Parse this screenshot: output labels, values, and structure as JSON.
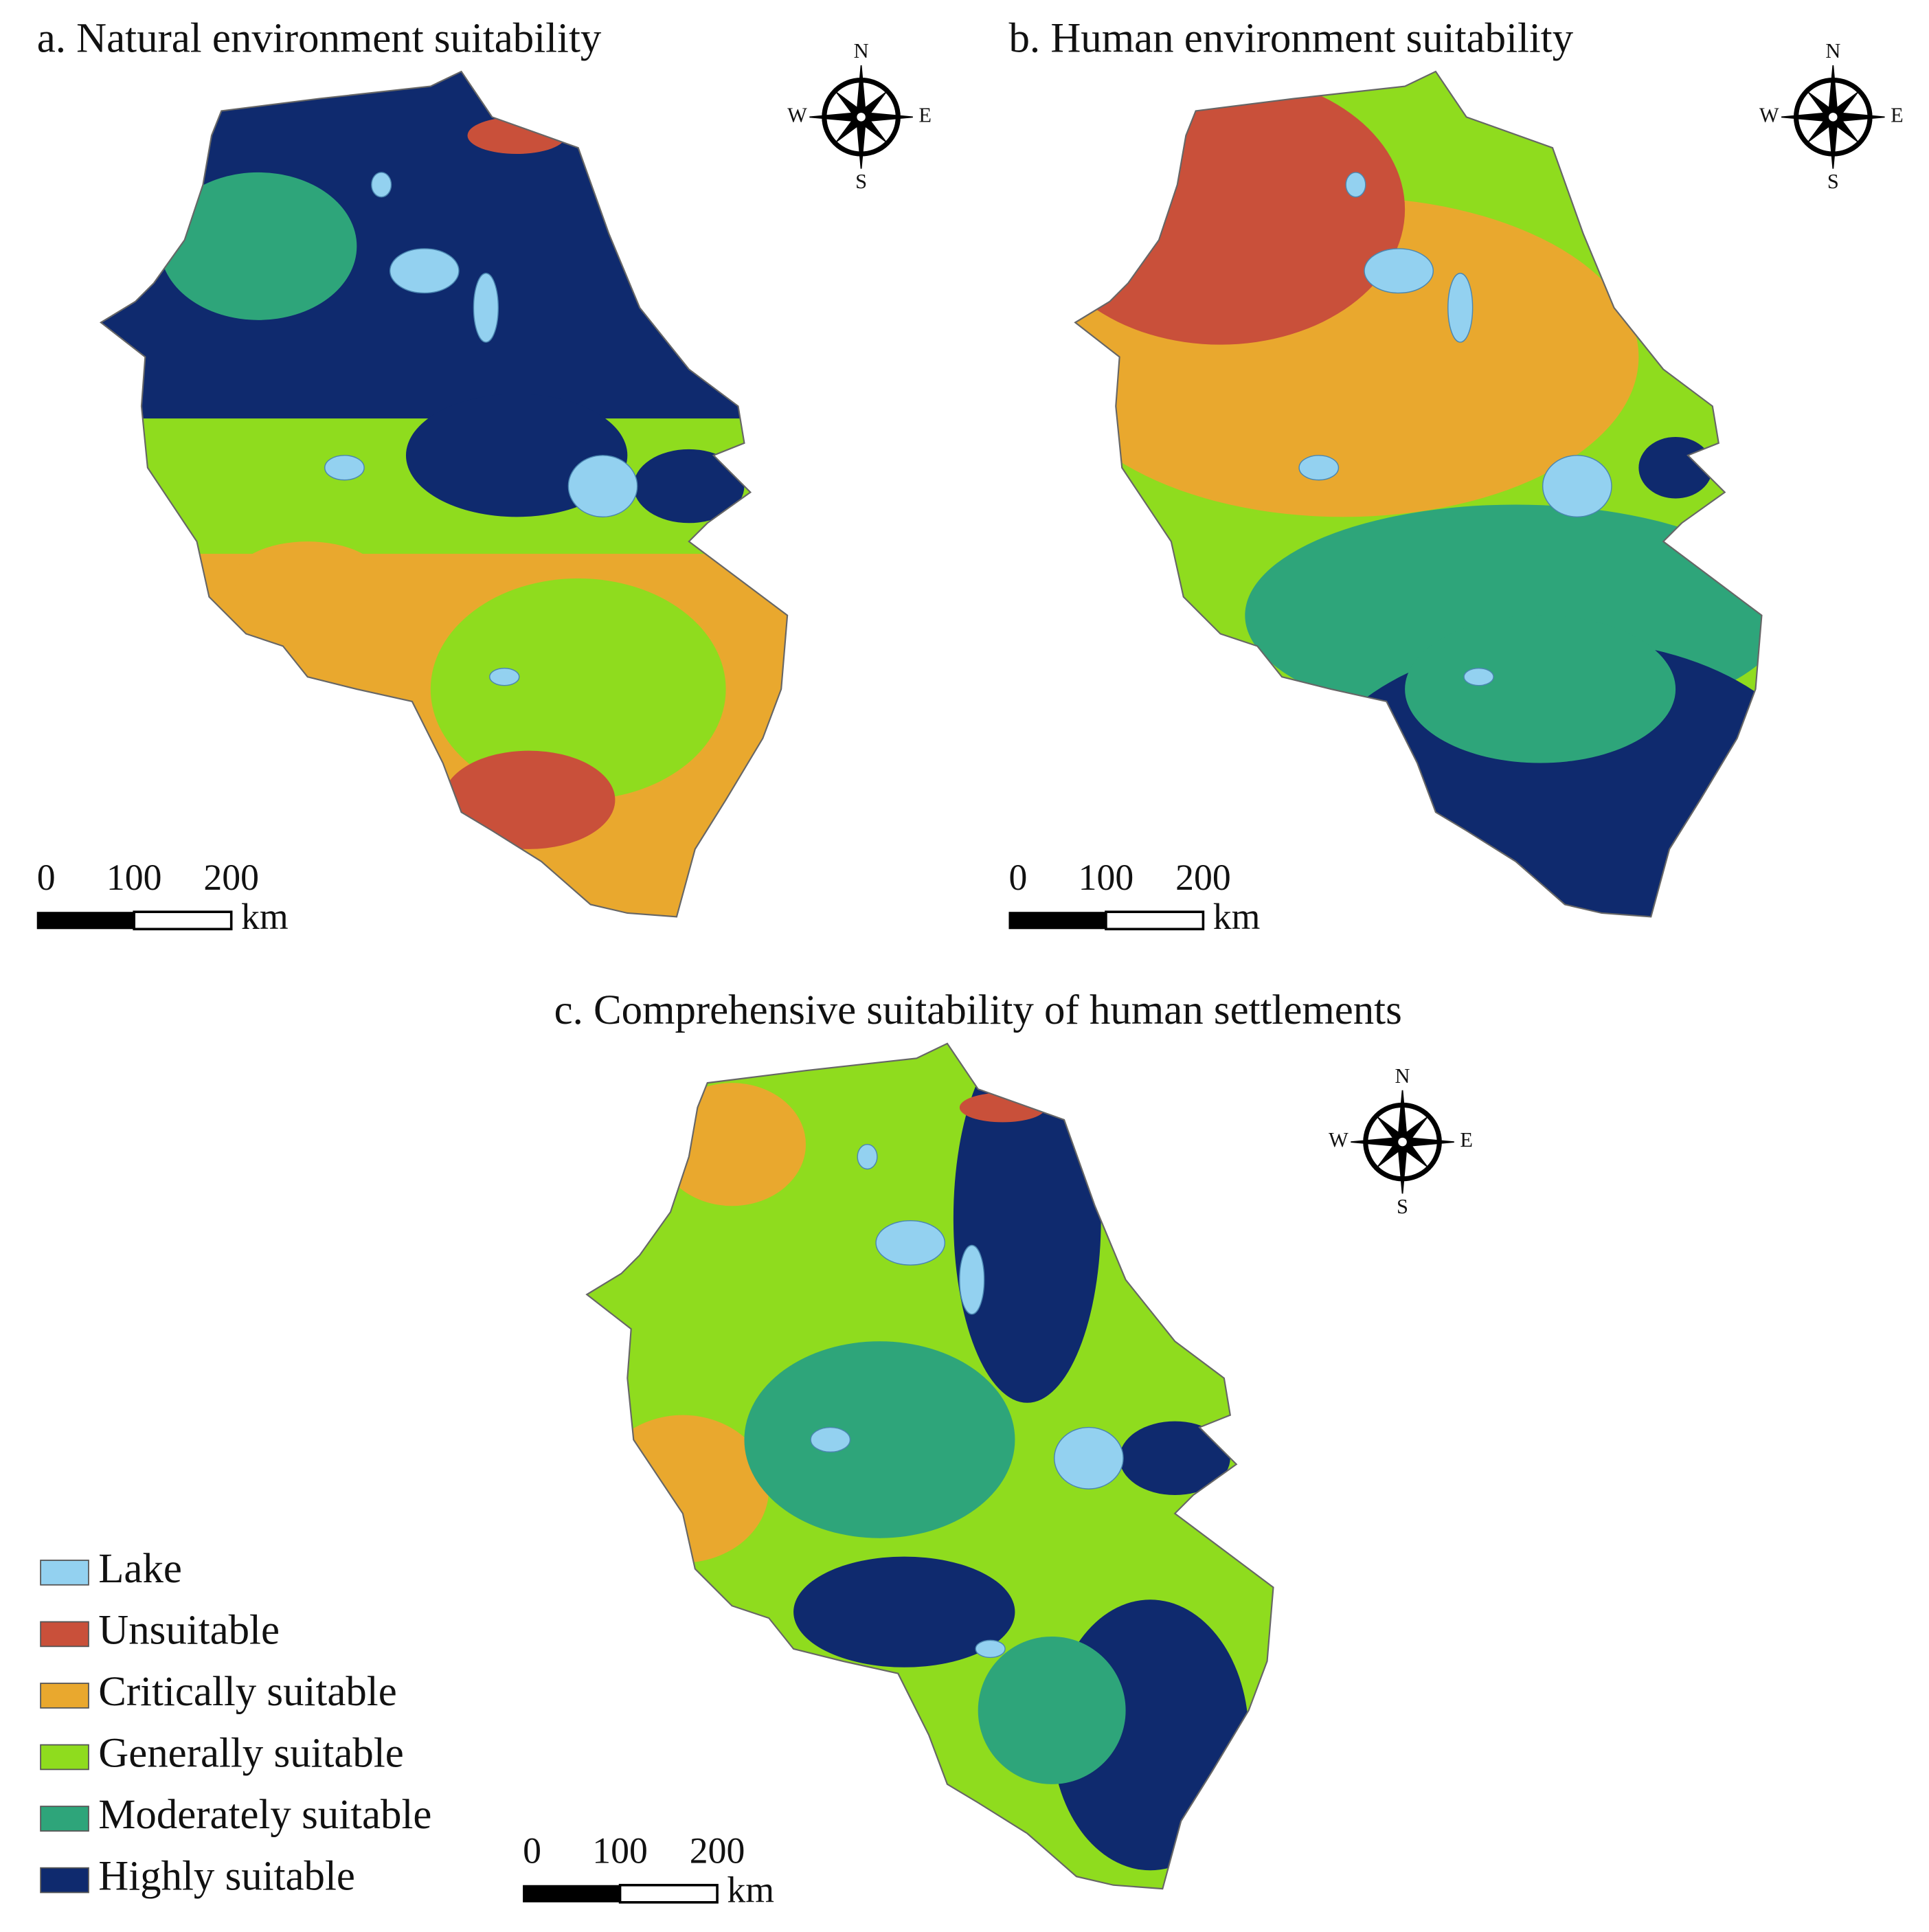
{
  "maps": [
    {
      "title": "a. Natural environment suitability",
      "compass": {
        "n": "N",
        "s": "S",
        "w": "W",
        "e": "E"
      },
      "scale_bar": {
        "ticks": [
          0,
          100,
          200
        ],
        "unit": "km"
      }
    },
    {
      "title": "b. Human environment suitability",
      "compass": {
        "n": "N",
        "s": "S",
        "w": "W",
        "e": "E"
      },
      "scale_bar": {
        "ticks": [
          0,
          100,
          200
        ],
        "unit": "km"
      }
    },
    {
      "title": "c. Comprehensive suitability of human settlements",
      "compass": {
        "n": "N",
        "s": "S",
        "w": "W",
        "e": "E"
      },
      "scale_bar": {
        "ticks": [
          0,
          100,
          200
        ],
        "unit": "km"
      }
    }
  ],
  "legend": [
    {
      "label": "Lake",
      "color": "#93d1f0"
    },
    {
      "label": "Unsuitable",
      "color": "#c9503a"
    },
    {
      "label": "Critically suitable",
      "color": "#e9a82e"
    },
    {
      "label": "Generally suitable",
      "color": "#8fdc1e"
    },
    {
      "label": "Moderately suitable",
      "color": "#2ea57a"
    },
    {
      "label": "Highly suitable",
      "color": "#0f2a6e"
    }
  ]
}
